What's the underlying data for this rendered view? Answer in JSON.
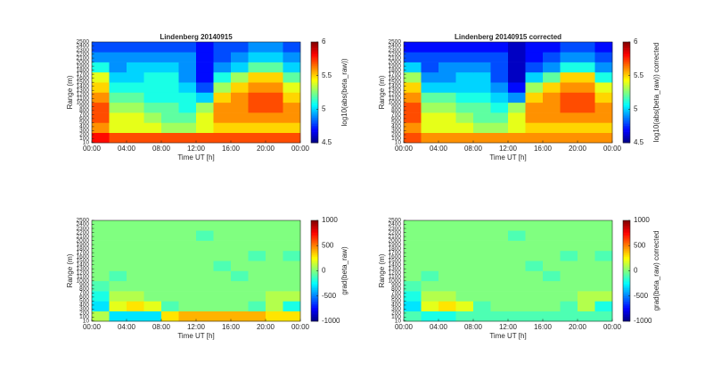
{
  "chart_data": [
    {
      "type": "heatmap",
      "title": "Lindenberg 20140915",
      "x_label": "Time UT [h]",
      "y_label": "Range (m)",
      "colorbar_label": "log10(abs(beta_raw))",
      "colormap": "jet",
      "xlim": [
        0,
        24
      ],
      "ylim": [
        0,
        2500
      ],
      "xticks": [
        {
          "value": 0,
          "label": "00:00"
        },
        {
          "value": 4,
          "label": "04:00"
        },
        {
          "value": 8,
          "label": "08:00"
        },
        {
          "value": 12,
          "label": "12:00"
        },
        {
          "value": 16,
          "label": "16:00"
        },
        {
          "value": 20,
          "label": "20:00"
        },
        {
          "value": 24,
          "label": "00:00"
        }
      ],
      "yticks": [
        10,
        100,
        200,
        300,
        400,
        500,
        600,
        700,
        800,
        900,
        1000,
        1100,
        1200,
        1300,
        1400,
        1500,
        1600,
        1700,
        1800,
        1900,
        2000,
        2100,
        2200,
        2300,
        2400,
        2500
      ],
      "clim": [
        4.5,
        6
      ],
      "cticks": [
        4.5,
        5,
        5.5,
        6
      ],
      "x": [
        1,
        3,
        5,
        7,
        9,
        11,
        13,
        15,
        17,
        19,
        21,
        23
      ],
      "y": [
        125,
        375,
        625,
        875,
        1125,
        1375,
        1625,
        1875,
        2125,
        2375
      ],
      "z": [
        [
          5.8,
          5.7,
          5.7,
          5.7,
          5.7,
          5.7,
          5.7,
          5.7,
          5.7,
          5.7,
          5.7,
          5.7
        ],
        [
          5.6,
          5.4,
          5.4,
          5.4,
          5.3,
          5.3,
          5.4,
          5.5,
          5.5,
          5.5,
          5.5,
          5.5
        ],
        [
          5.7,
          5.4,
          5.4,
          5.3,
          5.2,
          5.2,
          5.4,
          5.6,
          5.6,
          5.6,
          5.6,
          5.6
        ],
        [
          5.7,
          5.3,
          5.3,
          5.2,
          5.2,
          5.1,
          5.3,
          5.6,
          5.6,
          5.7,
          5.7,
          5.6
        ],
        [
          5.6,
          5.2,
          5.2,
          5.1,
          5.1,
          5.1,
          5.0,
          5.5,
          5.6,
          5.7,
          5.7,
          5.5
        ],
        [
          5.5,
          5.1,
          5.1,
          5.1,
          5.1,
          5.0,
          4.8,
          5.3,
          5.5,
          5.6,
          5.6,
          5.4
        ],
        [
          5.4,
          5.0,
          5.0,
          5.1,
          5.1,
          4.9,
          4.7,
          5.1,
          5.3,
          5.5,
          5.5,
          5.2
        ],
        [
          5.1,
          4.9,
          5.0,
          5.0,
          5.0,
          4.9,
          4.7,
          4.9,
          5.0,
          5.2,
          5.2,
          5.0
        ],
        [
          4.9,
          4.9,
          4.9,
          4.9,
          4.9,
          4.9,
          4.7,
          4.8,
          4.9,
          5.0,
          5.0,
          4.9
        ],
        [
          4.8,
          4.8,
          4.8,
          4.8,
          4.8,
          4.8,
          4.7,
          4.8,
          4.8,
          4.9,
          4.9,
          4.8
        ]
      ]
    },
    {
      "type": "heatmap",
      "title": "Lindenberg 20140915 corrected",
      "x_label": "Time UT [h]",
      "y_label": "Range (m)",
      "colorbar_label": "log10(abs(beta_raw)) corrected",
      "colormap": "jet",
      "xlim": [
        0,
        24
      ],
      "ylim": [
        0,
        2500
      ],
      "xticks": [
        {
          "value": 0,
          "label": "00:00"
        },
        {
          "value": 4,
          "label": "04:00"
        },
        {
          "value": 8,
          "label": "08:00"
        },
        {
          "value": 12,
          "label": "12:00"
        },
        {
          "value": 16,
          "label": "16:00"
        },
        {
          "value": 20,
          "label": "20:00"
        },
        {
          "value": 24,
          "label": "00:00"
        }
      ],
      "yticks": [
        10,
        100,
        200,
        300,
        400,
        500,
        600,
        700,
        800,
        900,
        1000,
        1100,
        1200,
        1300,
        1400,
        1500,
        1600,
        1700,
        1800,
        1900,
        2000,
        2100,
        2200,
        2300,
        2400,
        2500
      ],
      "clim": [
        4.5,
        6
      ],
      "cticks": [
        4.5,
        5,
        5.5,
        6
      ],
      "x": [
        1,
        3,
        5,
        7,
        9,
        11,
        13,
        15,
        17,
        19,
        21,
        23
      ],
      "y": [
        125,
        375,
        625,
        875,
        1125,
        1375,
        1625,
        1875,
        2125,
        2375
      ],
      "z": [
        [
          5.7,
          5.6,
          5.6,
          5.6,
          5.6,
          5.6,
          5.6,
          5.6,
          5.6,
          5.6,
          5.6,
          5.6
        ],
        [
          5.6,
          5.4,
          5.4,
          5.4,
          5.3,
          5.3,
          5.4,
          5.5,
          5.5,
          5.5,
          5.5,
          5.5
        ],
        [
          5.7,
          5.4,
          5.4,
          5.3,
          5.2,
          5.2,
          5.4,
          5.6,
          5.6,
          5.6,
          5.6,
          5.6
        ],
        [
          5.7,
          5.3,
          5.3,
          5.2,
          5.2,
          5.1,
          5.3,
          5.6,
          5.6,
          5.7,
          5.7,
          5.6
        ],
        [
          5.6,
          5.2,
          5.2,
          5.1,
          5.1,
          5.0,
          4.9,
          5.5,
          5.6,
          5.7,
          5.7,
          5.5
        ],
        [
          5.5,
          5.0,
          5.0,
          5.0,
          5.0,
          4.9,
          4.7,
          5.3,
          5.5,
          5.6,
          5.6,
          5.4
        ],
        [
          5.3,
          4.9,
          4.9,
          5.0,
          5.0,
          4.8,
          4.6,
          5.0,
          5.2,
          5.5,
          5.5,
          5.1
        ],
        [
          5.0,
          4.8,
          4.9,
          4.9,
          4.9,
          4.8,
          4.6,
          4.8,
          4.9,
          5.1,
          5.1,
          4.9
        ],
        [
          4.8,
          4.8,
          4.8,
          4.8,
          4.8,
          4.8,
          4.6,
          4.7,
          4.8,
          4.9,
          4.9,
          4.8
        ],
        [
          4.7,
          4.7,
          4.7,
          4.7,
          4.7,
          4.7,
          4.6,
          4.7,
          4.7,
          4.8,
          4.8,
          4.7
        ]
      ]
    },
    {
      "type": "heatmap",
      "x_label": "Time UT [h]",
      "y_label": "Range (m)",
      "colorbar_label": "grad(beta_raw)",
      "colormap": "jet",
      "xlim": [
        0,
        24
      ],
      "ylim": [
        0,
        2500
      ],
      "xticks": [
        {
          "value": 0,
          "label": "00:00"
        },
        {
          "value": 4,
          "label": "04:00"
        },
        {
          "value": 8,
          "label": "08:00"
        },
        {
          "value": 12,
          "label": "12:00"
        },
        {
          "value": 16,
          "label": "16:00"
        },
        {
          "value": 20,
          "label": "20:00"
        },
        {
          "value": 24,
          "label": "00:00"
        }
      ],
      "yticks": [
        10,
        100,
        200,
        300,
        400,
        500,
        600,
        700,
        800,
        900,
        1000,
        1100,
        1200,
        1300,
        1400,
        1500,
        1600,
        1700,
        1800,
        1900,
        2000,
        2100,
        2200,
        2300,
        2400,
        2500
      ],
      "clim": [
        -1000,
        1000
      ],
      "cticks": [
        -1000,
        -500,
        0,
        500,
        1000
      ],
      "x": [
        1,
        3,
        5,
        7,
        9,
        11,
        13,
        15,
        17,
        19,
        21,
        23
      ],
      "y": [
        125,
        375,
        625,
        875,
        1125,
        1375,
        1625,
        1875,
        2125,
        2375
      ],
      "z": [
        [
          100,
          -300,
          -300,
          -300,
          300,
          400,
          400,
          400,
          400,
          400,
          300,
          300
        ],
        [
          -300,
          200,
          300,
          200,
          -100,
          0,
          0,
          0,
          0,
          -100,
          100,
          -200
        ],
        [
          -200,
          100,
          100,
          0,
          0,
          0,
          0,
          0,
          0,
          0,
          100,
          100
        ],
        [
          -100,
          0,
          0,
          0,
          0,
          0,
          0,
          0,
          0,
          0,
          0,
          0
        ],
        [
          0,
          -100,
          0,
          0,
          0,
          0,
          0,
          0,
          -100,
          0,
          0,
          0
        ],
        [
          0,
          0,
          0,
          0,
          0,
          0,
          0,
          -100,
          0,
          0,
          0,
          0
        ],
        [
          0,
          0,
          0,
          0,
          0,
          0,
          0,
          0,
          0,
          -100,
          0,
          -100
        ],
        [
          0,
          0,
          0,
          0,
          0,
          0,
          0,
          0,
          0,
          0,
          0,
          0
        ],
        [
          0,
          0,
          0,
          0,
          0,
          0,
          -100,
          0,
          0,
          0,
          0,
          0
        ],
        [
          0,
          0,
          0,
          0,
          0,
          0,
          0,
          0,
          0,
          0,
          0,
          0
        ]
      ]
    },
    {
      "type": "heatmap",
      "x_label": "Time UT [h]",
      "y_label": "Range (m)",
      "colorbar_label": "grad(beta_raw) corrected",
      "colormap": "jet",
      "xlim": [
        0,
        24
      ],
      "ylim": [
        0,
        2500
      ],
      "xticks": [
        {
          "value": 0,
          "label": "00:00"
        },
        {
          "value": 4,
          "label": "04:00"
        },
        {
          "value": 8,
          "label": "08:00"
        },
        {
          "value": 12,
          "label": "12:00"
        },
        {
          "value": 16,
          "label": "16:00"
        },
        {
          "value": 20,
          "label": "20:00"
        },
        {
          "value": 24,
          "label": "00:00"
        }
      ],
      "yticks": [
        10,
        100,
        200,
        300,
        400,
        500,
        600,
        700,
        800,
        900,
        1000,
        1100,
        1200,
        1300,
        1400,
        1500,
        1600,
        1700,
        1800,
        1900,
        2000,
        2100,
        2200,
        2300,
        2400,
        2500
      ],
      "clim": [
        -1000,
        1000
      ],
      "cticks": [
        -1000,
        -500,
        0,
        500,
        1000
      ],
      "x": [
        1,
        3,
        5,
        7,
        9,
        11,
        13,
        15,
        17,
        19,
        21,
        23
      ],
      "y": [
        125,
        375,
        625,
        875,
        1125,
        1375,
        1625,
        1875,
        2125,
        2375
      ],
      "z": [
        [
          -100,
          -200,
          -200,
          -100,
          -100,
          -100,
          -100,
          -100,
          -100,
          -100,
          -100,
          -100
        ],
        [
          -300,
          200,
          300,
          200,
          -100,
          0,
          0,
          0,
          0,
          -100,
          100,
          -200
        ],
        [
          -200,
          100,
          100,
          0,
          0,
          0,
          0,
          0,
          0,
          0,
          100,
          100
        ],
        [
          -100,
          0,
          0,
          0,
          0,
          0,
          0,
          0,
          0,
          0,
          0,
          0
        ],
        [
          0,
          -100,
          0,
          0,
          0,
          0,
          0,
          0,
          -100,
          0,
          0,
          0
        ],
        [
          0,
          0,
          0,
          0,
          0,
          0,
          0,
          -100,
          0,
          0,
          0,
          0
        ],
        [
          0,
          0,
          0,
          0,
          0,
          0,
          0,
          0,
          0,
          -100,
          0,
          -100
        ],
        [
          0,
          0,
          0,
          0,
          0,
          0,
          0,
          0,
          0,
          0,
          0,
          0
        ],
        [
          0,
          0,
          0,
          0,
          0,
          0,
          -100,
          0,
          0,
          0,
          0,
          0
        ],
        [
          0,
          0,
          0,
          0,
          0,
          0,
          0,
          0,
          0,
          0,
          0,
          0
        ]
      ]
    }
  ]
}
